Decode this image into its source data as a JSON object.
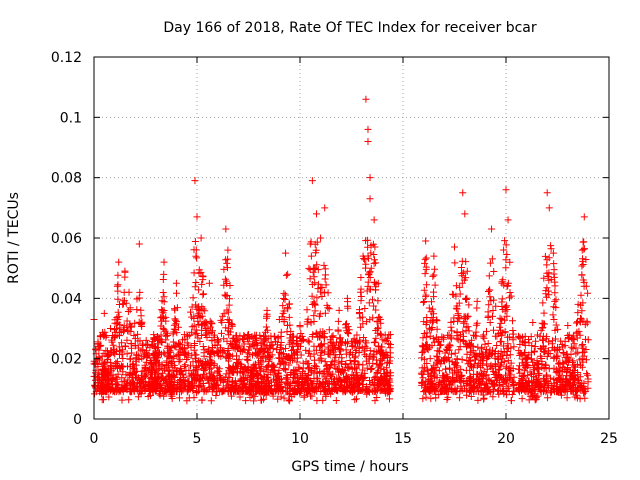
{
  "chart_data": {
    "type": "scatter",
    "title": "Day 166 of 2018, Rate Of TEC Index for receiver bcar",
    "xlabel": "GPS time / hours",
    "ylabel": "ROTI / TECUs",
    "xlim": [
      0,
      25
    ],
    "ylim": [
      0,
      0.12
    ],
    "x_ticks": [
      0,
      5,
      10,
      15,
      20,
      25
    ],
    "x_tick_labels": [
      "0",
      "5",
      "10",
      "15",
      "20",
      "25"
    ],
    "y_ticks": [
      0,
      0.02,
      0.04,
      0.06,
      0.08,
      0.1,
      0.12
    ],
    "y_tick_labels": [
      "0",
      "0.02",
      "0.04",
      "0.06",
      "0.08",
      "0.1",
      "0.12"
    ],
    "grid": true,
    "marker": "+",
    "series": [
      {
        "name": "ROTI",
        "color": "#ff0000",
        "data_gaps_hours": [
          [
            14.4,
            15.9
          ],
          [
            20.4,
            20.6
          ]
        ],
        "points": [
          [
            0.0,
            0.033
          ],
          [
            0.2,
            0.025
          ],
          [
            0.5,
            0.035
          ],
          [
            0.8,
            0.03
          ],
          [
            1.2,
            0.052
          ],
          [
            1.5,
            0.049
          ],
          [
            1.7,
            0.042
          ],
          [
            2.2,
            0.058
          ],
          [
            3.4,
            0.052
          ],
          [
            4.0,
            0.045
          ],
          [
            4.9,
            0.079
          ],
          [
            5.0,
            0.067
          ],
          [
            5.2,
            0.06
          ],
          [
            5.6,
            0.045
          ],
          [
            6.4,
            0.063
          ],
          [
            6.5,
            0.056
          ],
          [
            7.5,
            0.028
          ],
          [
            8.4,
            0.036
          ],
          [
            9.0,
            0.033
          ],
          [
            9.3,
            0.055
          ],
          [
            9.4,
            0.048
          ],
          [
            10.0,
            0.031
          ],
          [
            10.5,
            0.058
          ],
          [
            10.6,
            0.079
          ],
          [
            10.8,
            0.068
          ],
          [
            11.0,
            0.06
          ],
          [
            11.2,
            0.07
          ],
          [
            11.9,
            0.036
          ],
          [
            12.3,
            0.04
          ],
          [
            13.2,
            0.106
          ],
          [
            13.3,
            0.096
          ],
          [
            13.3,
            0.092
          ],
          [
            13.4,
            0.08
          ],
          [
            13.4,
            0.073
          ],
          [
            13.6,
            0.066
          ],
          [
            13.8,
            0.045
          ],
          [
            14.0,
            0.02
          ],
          [
            16.1,
            0.059
          ],
          [
            16.5,
            0.054
          ],
          [
            17.5,
            0.057
          ],
          [
            17.9,
            0.075
          ],
          [
            18.0,
            0.068
          ],
          [
            18.6,
            0.039
          ],
          [
            19.3,
            0.063
          ],
          [
            19.8,
            0.045
          ],
          [
            20.0,
            0.076
          ],
          [
            20.1,
            0.066
          ],
          [
            21.3,
            0.032
          ],
          [
            22.0,
            0.075
          ],
          [
            22.1,
            0.07
          ],
          [
            22.3,
            0.055
          ],
          [
            23.0,
            0.031
          ],
          [
            23.5,
            0.038
          ],
          [
            23.8,
            0.067
          ],
          [
            23.7,
            0.056
          ],
          [
            23.9,
            0.044
          ]
        ]
      }
    ]
  }
}
